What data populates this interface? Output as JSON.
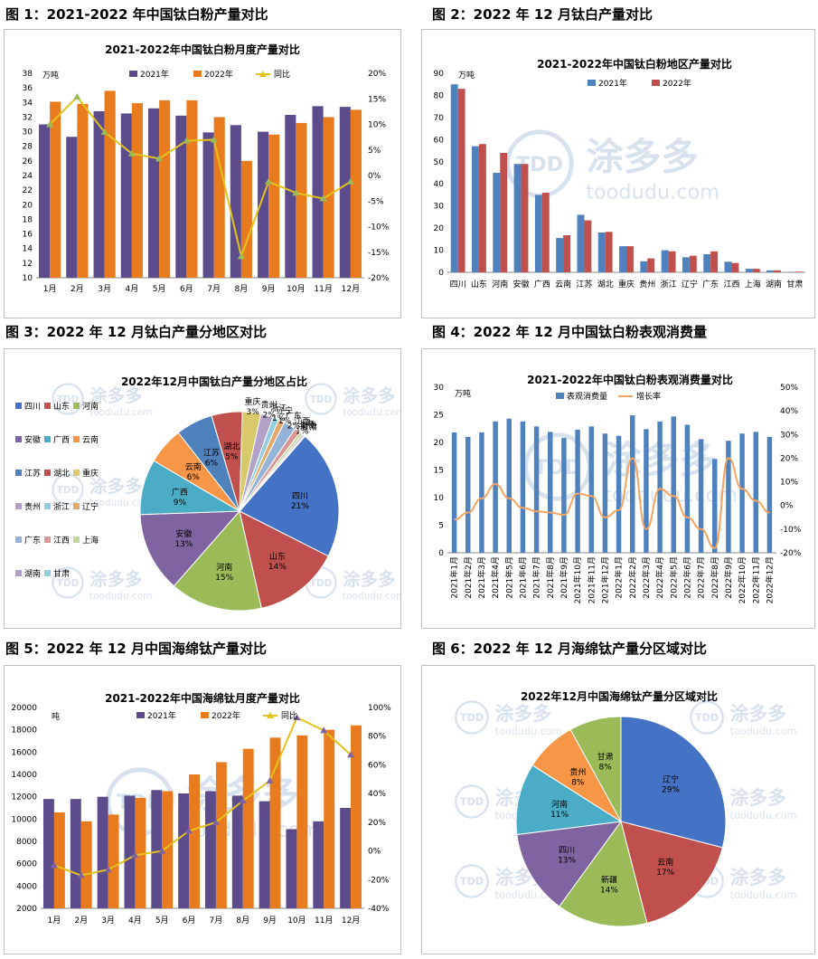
{
  "captions": {
    "c1": "图 1：2021-2022 年中国钛白粉产量对比",
    "c2": "图 2：2022 年 12 月钛白产量对比",
    "c3": "图 3：2022 年 12 月钛白产量分地区对比",
    "c4": "图 4：2022 年 12 月中国钛白粉表观消费量",
    "c5": "图 5：2022 年 12 月中国海绵钛产量对比",
    "c6": "图 6：2022 年 12 月海绵钛产量分区域对比"
  },
  "watermark": {
    "brand": "涂多多",
    "site": "toodudu.com",
    "logo": "TDD"
  },
  "colors": {
    "c2021": "#5c4c8c",
    "c2022": "#e97b1f",
    "yoy": "#e3c31b",
    "blue21": "#4f81bd",
    "red22": "#c0504d",
    "consume": "#4f81bd",
    "growth": "#f4a460"
  },
  "chart_data": [
    {
      "id": "fig1",
      "type": "bar",
      "title": "2021-2022年中国钛白粉月度产量对比",
      "unit": "万吨",
      "categories": [
        "1月",
        "2月",
        "3月",
        "4月",
        "5月",
        "6月",
        "7月",
        "8月",
        "9月",
        "10月",
        "11月",
        "12月"
      ],
      "series": [
        {
          "name": "2021年",
          "values": [
            31,
            29.3,
            32.8,
            32.5,
            33.2,
            32.2,
            29.9,
            30.9,
            30,
            32.3,
            33.5,
            33.4
          ]
        },
        {
          "name": "2022年",
          "values": [
            34.1,
            33.8,
            35.6,
            33.9,
            34.3,
            34.3,
            32,
            26,
            29.6,
            31.2,
            32,
            33
          ]
        },
        {
          "name": "同比",
          "axis": "right",
          "values": [
            10,
            15.4,
            8.5,
            4.3,
            3.3,
            6.8,
            7,
            -15.8,
            -1.2,
            -3.4,
            -4.5,
            -1.2
          ]
        }
      ],
      "ylim": [
        10,
        38
      ],
      "yticks": [
        10,
        12,
        14,
        16,
        18,
        20,
        22,
        24,
        26,
        28,
        30,
        32,
        34,
        36,
        38
      ],
      "y2lim": [
        -20,
        20
      ],
      "y2ticks": [
        "-20%",
        "-15%",
        "-10%",
        "-5%",
        "0%",
        "5%",
        "10%",
        "15%",
        "20%"
      ]
    },
    {
      "id": "fig2",
      "type": "bar",
      "title": "2021-2022年中国钛白粉地区产量对比",
      "unit": "万吨",
      "categories": [
        "四川",
        "山东",
        "河南",
        "安徽",
        "广西",
        "云南",
        "江苏",
        "湖北",
        "重庆",
        "贵州",
        "浙江",
        "辽宁",
        "广东",
        "江西",
        "上海",
        "湖南",
        "甘肃"
      ],
      "series": [
        {
          "name": "2021年",
          "values": [
            85,
            57,
            45,
            49,
            35,
            15.5,
            26,
            18,
            11.8,
            5,
            10,
            6.8,
            8.2,
            4.8,
            1.6,
            0.9,
            0.2
          ]
        },
        {
          "name": "2022年",
          "values": [
            83,
            58,
            54,
            49,
            36,
            16.8,
            23.5,
            18.3,
            11.8,
            6.3,
            9.5,
            7.5,
            9.5,
            4.2,
            1.6,
            0.9,
            0.3
          ]
        }
      ],
      "ylim": [
        0,
        90
      ],
      "yticks": [
        0,
        10,
        20,
        30,
        40,
        50,
        60,
        70,
        80,
        90
      ]
    },
    {
      "id": "fig3",
      "type": "pie",
      "title": "2022年12月中国钛白产量分地区占比",
      "slices": [
        {
          "name": "四川",
          "value": 21,
          "label": "21%",
          "color": "#4472c4"
        },
        {
          "name": "山东",
          "value": 14,
          "label": "14%",
          "color": "#c0504d"
        },
        {
          "name": "河南",
          "value": 15,
          "label": "15%",
          "color": "#9bbb59"
        },
        {
          "name": "安徽",
          "value": 13,
          "label": "13%",
          "color": "#8064a2"
        },
        {
          "name": "广西",
          "value": 9,
          "label": "9%",
          "color": "#4bacc6"
        },
        {
          "name": "云南",
          "value": 6,
          "label": "6%",
          "color": "#f79646"
        },
        {
          "name": "江苏",
          "value": 6,
          "label": "6%",
          "color": "#4f81bd"
        },
        {
          "name": "湖北",
          "value": 5,
          "label": "5%",
          "color": "#c0504d"
        },
        {
          "name": "重庆",
          "value": 3,
          "label": "3%",
          "color": "#d8c96b"
        },
        {
          "name": "贵州",
          "value": 2,
          "label": "2%",
          "color": "#b3a2c7"
        },
        {
          "name": "浙江",
          "value": 1,
          "label": "1%",
          "color": "#93cddd"
        },
        {
          "name": "辽宁",
          "value": 1,
          "label": "1%",
          "color": "#e4a86b"
        },
        {
          "name": "广东",
          "value": 2,
          "label": "2%",
          "color": "#95b3d7"
        },
        {
          "name": "江西",
          "value": 1,
          "label": "1%",
          "color": "#d99694"
        },
        {
          "name": "上海",
          "value": 0.5,
          "label": "",
          "color": "#c3d69b"
        },
        {
          "name": "湖南",
          "value": 0.3,
          "label": "",
          "color": "#b1a0c7"
        },
        {
          "name": "甘肃",
          "value": 0.2,
          "label": "",
          "color": "#92cddc"
        }
      ],
      "legend": "left"
    },
    {
      "id": "fig4",
      "type": "bar",
      "title": "2021-2022年中国钛白粉表观消费量对比",
      "unit": "万吨",
      "categories": [
        "2021年1月",
        "2021年2月",
        "2021年3月",
        "2021年4月",
        "2021年5月",
        "2021年6月",
        "2021年7月",
        "2021年8月",
        "2021年9月",
        "2021年10月",
        "2021年11月",
        "2021年12月",
        "2022年1月",
        "2022年2月",
        "2022年3月",
        "2022年4月",
        "2022年5月",
        "2022年6月",
        "2022年7月",
        "2022年8月",
        "2022年9月",
        "2022年10月",
        "2022年11月",
        "2022年12月"
      ],
      "series": [
        {
          "name": "表观消费量",
          "values": [
            21.8,
            21,
            21.8,
            23.8,
            24.3,
            23.8,
            22.9,
            21.9,
            20.8,
            22.3,
            22.9,
            21.6,
            21.2,
            24.9,
            22.4,
            23.8,
            24.7,
            23.2,
            20.6,
            17,
            20.3,
            21.6,
            21.9,
            21
          ]
        },
        {
          "name": "增长率",
          "axis": "right",
          "values": [
            -6,
            -3,
            3,
            9,
            3,
            -1,
            -2.5,
            -3,
            -4,
            5,
            4,
            -5,
            -2,
            20,
            -10,
            7,
            4,
            -5,
            -10,
            -18,
            20,
            7,
            2,
            -3
          ]
        }
      ],
      "ylim": [
        0,
        30
      ],
      "yticks": [
        0,
        5,
        10,
        15,
        20,
        25,
        30
      ],
      "y2lim": [
        -20,
        50
      ],
      "y2ticks": [
        "-20%",
        "-10%",
        "0%",
        "10%",
        "20%",
        "30%",
        "40%",
        "50%"
      ]
    },
    {
      "id": "fig5",
      "type": "bar",
      "title": "2021-2022年中国海绵钛月度产量对比",
      "unit": "吨",
      "categories": [
        "1月",
        "2月",
        "3月",
        "4月",
        "5月",
        "6月",
        "7月",
        "8月",
        "9月",
        "10月",
        "11月",
        "12月"
      ],
      "series": [
        {
          "name": "2021年",
          "values": [
            11800,
            11800,
            12000,
            12100,
            12600,
            12300,
            12500,
            12100,
            11600,
            9100,
            9800,
            11000
          ]
        },
        {
          "name": "2022年",
          "values": [
            10600,
            9800,
            10400,
            11900,
            12500,
            14000,
            15100,
            16300,
            17300,
            17500,
            18000,
            18400
          ]
        },
        {
          "name": "同比",
          "axis": "right",
          "values": [
            -10,
            -17,
            -13,
            -3,
            0,
            14,
            20,
            35,
            49,
            93,
            84,
            67
          ]
        }
      ],
      "ylim": [
        2000,
        20000
      ],
      "yticks": [
        2000,
        4000,
        6000,
        8000,
        10000,
        12000,
        14000,
        16000,
        18000,
        20000
      ],
      "y2lim": [
        -40,
        100
      ],
      "y2ticks": [
        "-40%",
        "-20%",
        "0%",
        "20%",
        "40%",
        "60%",
        "80%",
        "100%"
      ]
    },
    {
      "id": "fig6",
      "type": "pie",
      "title": "2022年12月中国海绵钛产量分区域对比",
      "slices": [
        {
          "name": "辽宁",
          "value": 29,
          "label": "29%",
          "color": "#4472c4"
        },
        {
          "name": "云南",
          "value": 17,
          "label": "17%",
          "color": "#c0504d"
        },
        {
          "name": "新疆",
          "value": 14,
          "label": "14%",
          "color": "#9bbb59"
        },
        {
          "name": "四川",
          "value": 13,
          "label": "13%",
          "color": "#8064a2"
        },
        {
          "name": "河南",
          "value": 11,
          "label": "11%",
          "color": "#4bacc6"
        },
        {
          "name": "贵州",
          "value": 8,
          "label": "8%",
          "color": "#f79646"
        },
        {
          "name": "甘肃",
          "value": 8,
          "label": "8%",
          "color": "#9bbb59"
        }
      ]
    }
  ]
}
